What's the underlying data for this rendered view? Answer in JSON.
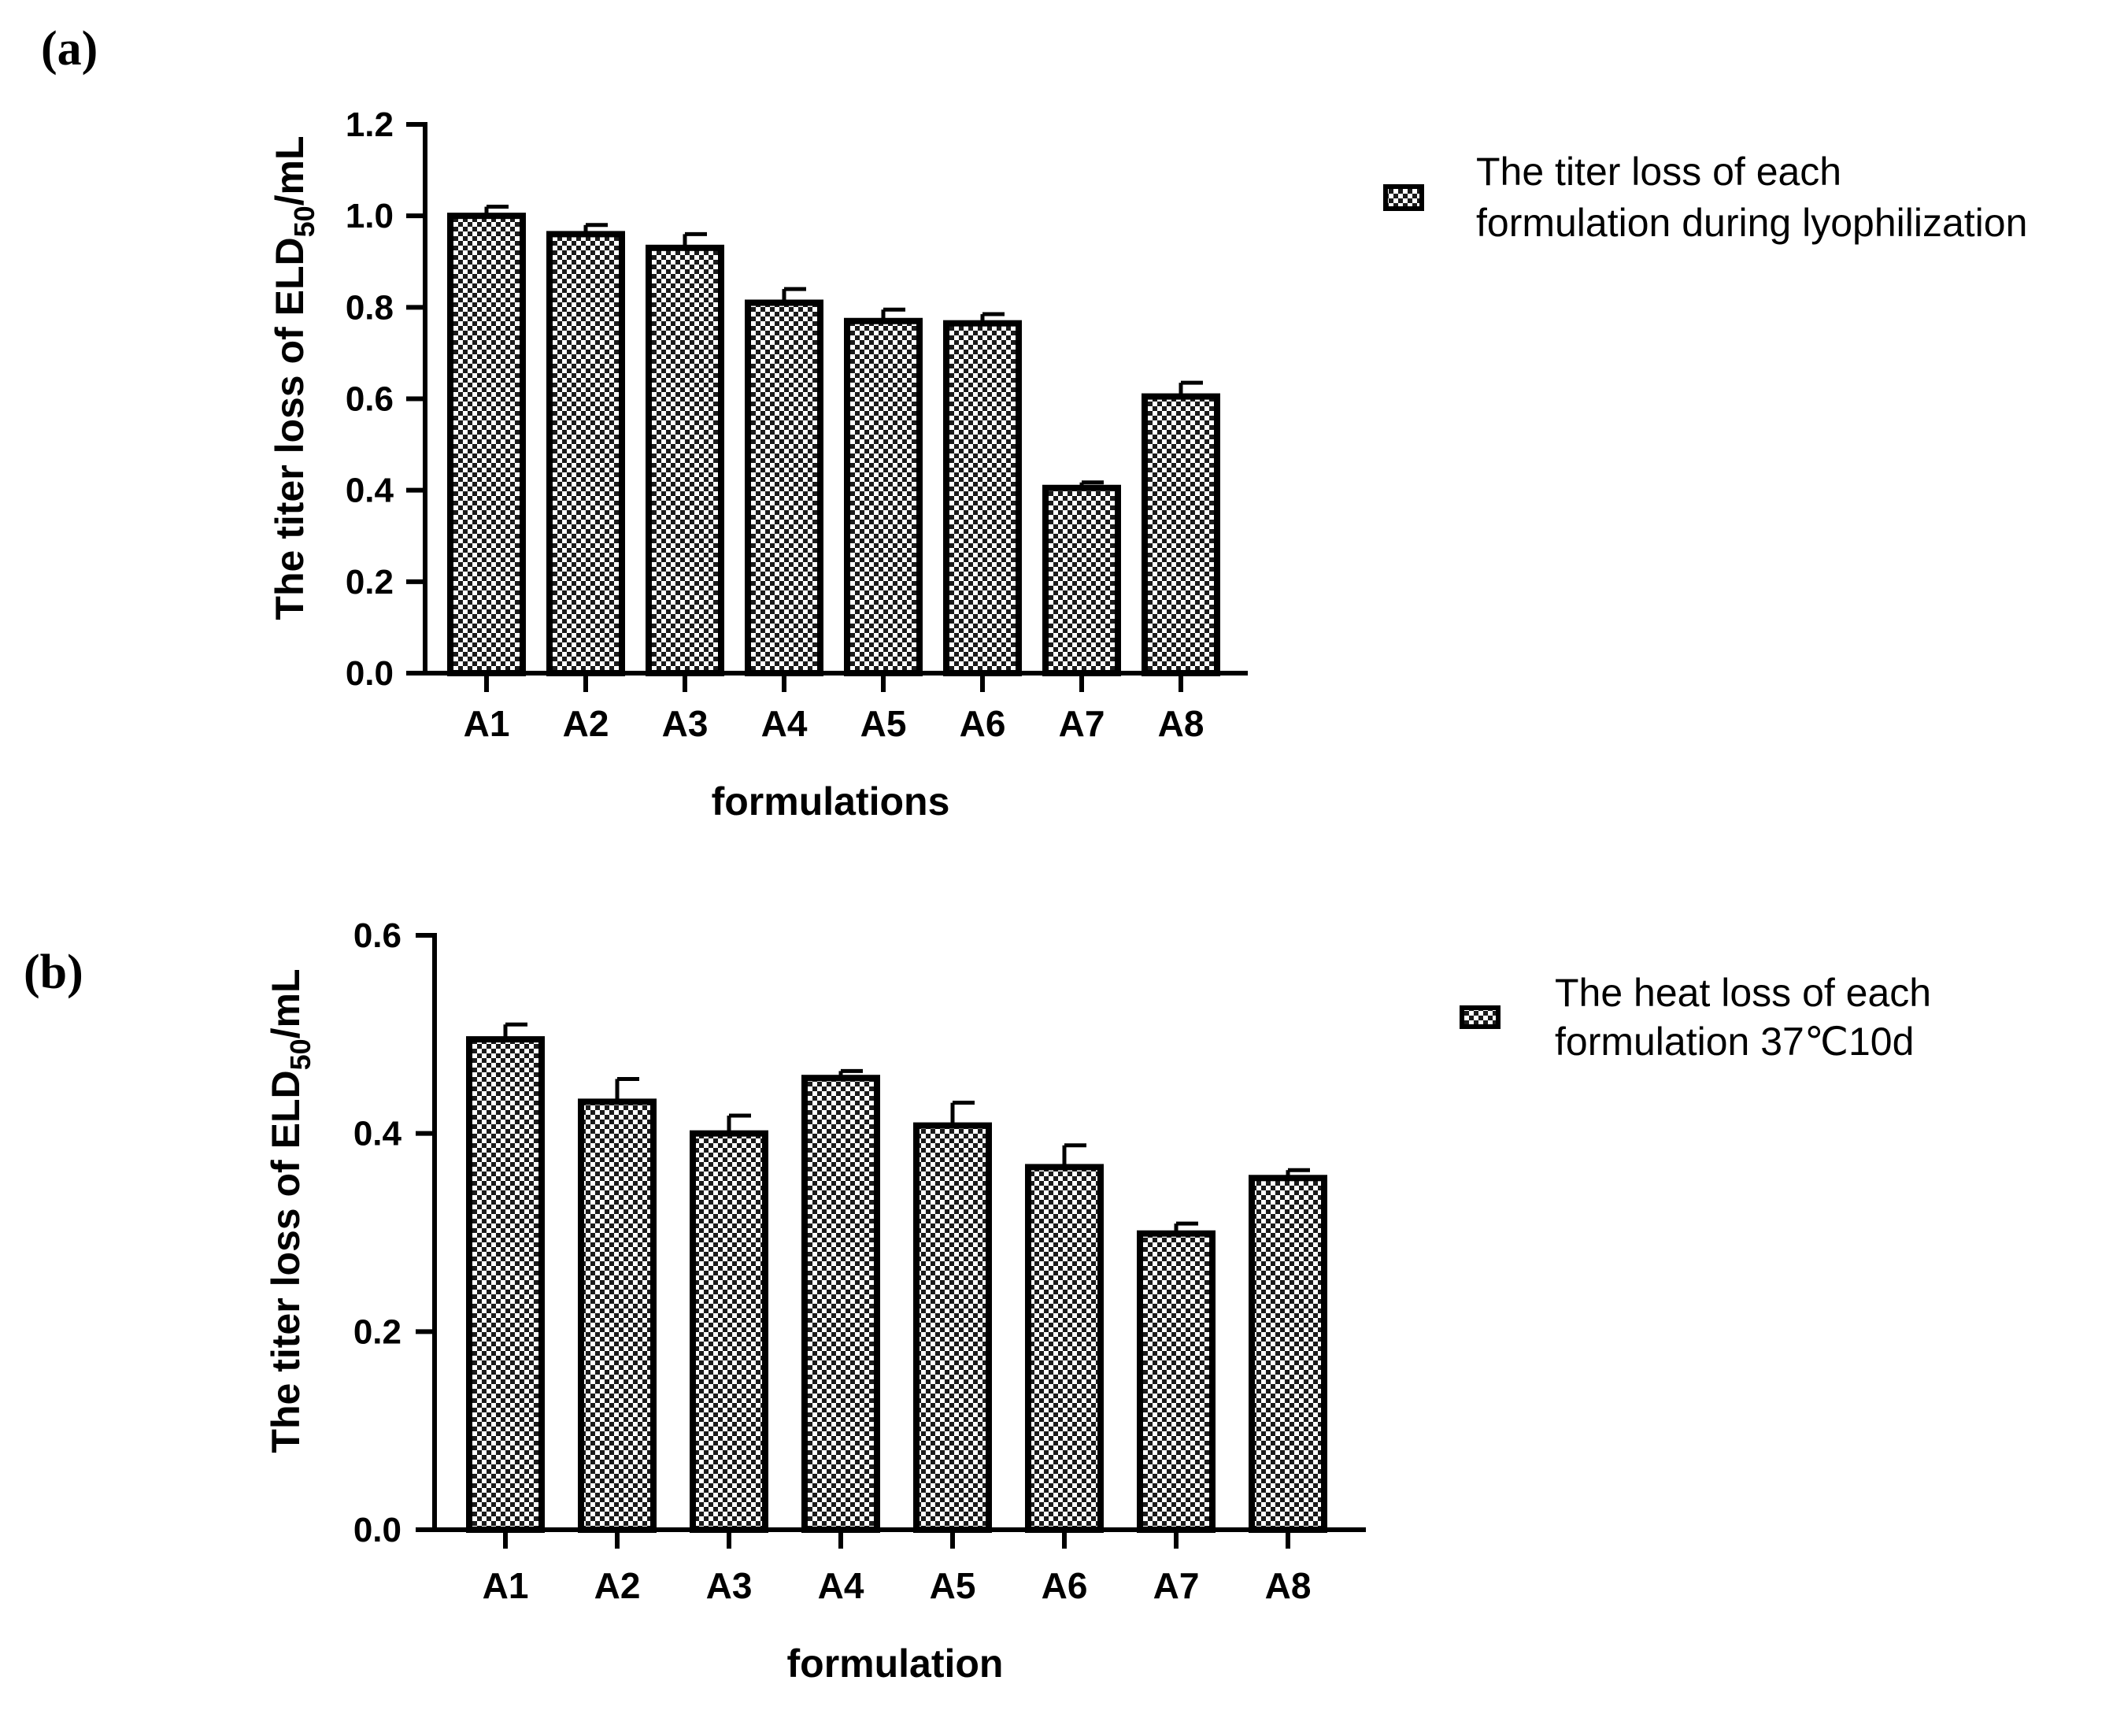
{
  "colors": {
    "ink": "#000000",
    "paper": "#ffffff"
  },
  "chart_data": [
    {
      "type": "bar",
      "panel_label": "(a)",
      "categories": [
        "A1",
        "A2",
        "A3",
        "A4",
        "A5",
        "A6",
        "A7",
        "A8"
      ],
      "values": [
        1.0,
        0.96,
        0.93,
        0.81,
        0.77,
        0.765,
        0.405,
        0.605
      ],
      "errors": [
        0.02,
        0.02,
        0.03,
        0.03,
        0.025,
        0.02,
        0.012,
        0.03
      ],
      "ylim": [
        0,
        1.2
      ],
      "yticks": [
        0.0,
        0.2,
        0.4,
        0.6,
        0.8,
        1.0,
        1.2
      ],
      "ytick_labels": [
        "0.0",
        "0.2",
        "0.4",
        "0.6",
        "0.8",
        "1.0",
        "1.2"
      ],
      "ylabel_main": "The titer loss of ELD",
      "ylabel_sub": "50",
      "ylabel_tail": "/mL",
      "xlabel": "formulations",
      "legend": {
        "placement": "top-right",
        "lines": [
          "The titer loss of each",
          "formulation during lyophilization"
        ]
      },
      "grid": false
    },
    {
      "type": "bar",
      "panel_label": "(b)",
      "categories": [
        "A1",
        "A2",
        "A3",
        "A4",
        "A5",
        "A6",
        "A7",
        "A8"
      ],
      "values": [
        0.495,
        0.432,
        0.4,
        0.456,
        0.408,
        0.366,
        0.299,
        0.355
      ],
      "errors": [
        0.015,
        0.023,
        0.018,
        0.007,
        0.023,
        0.022,
        0.01,
        0.008
      ],
      "ylim": [
        0,
        0.6
      ],
      "yticks": [
        0.0,
        0.2,
        0.4,
        0.6
      ],
      "ytick_labels": [
        "0.0",
        "0.2",
        "0.4",
        "0.6"
      ],
      "ylabel_main": "The titer loss of ELD",
      "ylabel_sub": "50",
      "ylabel_tail": "/mL",
      "xlabel": "formulation",
      "legend": {
        "placement": "top-right",
        "lines": [
          "The heat loss of each",
          "formulation 37℃10d"
        ]
      },
      "grid": false
    }
  ]
}
